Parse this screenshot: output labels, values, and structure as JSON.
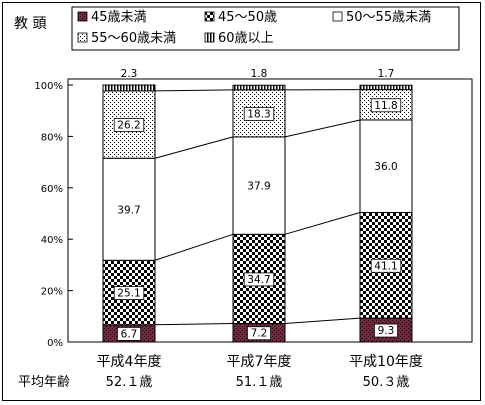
{
  "chart_data": {
    "type": "bar",
    "stacked": true,
    "percent_stacked": true,
    "title": "教 頭",
    "categories": [
      "平成4年度",
      "平成7年度",
      "平成10年度"
    ],
    "series": [
      {
        "name": "45歳未満",
        "values": [
          6.7,
          7.2,
          9.3
        ],
        "pattern": "dark"
      },
      {
        "name": "45～50歳",
        "values": [
          25.1,
          34.7,
          41.1
        ],
        "pattern": "checker"
      },
      {
        "name": "50～55歳未満",
        "values": [
          39.7,
          37.9,
          36.0
        ],
        "pattern": "white"
      },
      {
        "name": "55～60歳未満",
        "values": [
          26.2,
          18.3,
          11.8
        ],
        "pattern": "dots"
      },
      {
        "name": "60歳以上",
        "values": [
          2.3,
          1.8,
          1.7
        ],
        "pattern": "vlines"
      }
    ],
    "y_ticks": [
      "0%",
      "20%",
      "40%",
      "60%",
      "80%",
      "100%"
    ],
    "ylim": [
      0,
      100
    ],
    "legend_position": "top",
    "footer": {
      "label": "平均年齢",
      "values": [
        "52.１歳",
        "51.１歳",
        "50.３歳"
      ]
    }
  }
}
